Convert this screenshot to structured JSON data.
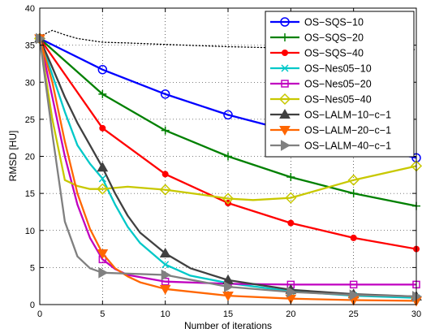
{
  "chart_data": {
    "type": "line",
    "title": "",
    "xlabel": "Number of iterations",
    "ylabel": "RMSD [HU]",
    "xlim": [
      0,
      30
    ],
    "ylim": [
      0,
      40
    ],
    "xticks": [
      0,
      5,
      10,
      15,
      20,
      25,
      30
    ],
    "yticks": [
      0,
      5,
      10,
      15,
      20,
      25,
      30,
      35,
      40
    ],
    "grid": true,
    "legend_position": "top-right",
    "reference_curve": {
      "style": "dotted",
      "color": "#000000",
      "x": [
        0,
        1,
        2,
        3,
        5,
        7,
        10,
        15,
        20,
        25,
        30
      ],
      "y": [
        36.2,
        37.0,
        36.4,
        35.9,
        35.4,
        35.3,
        35.1,
        34.8,
        34.6,
        34.5,
        34.4
      ]
    },
    "series": [
      {
        "name": "OS−SQS−10",
        "color": "#0000ff",
        "marker": "circle",
        "x": [
          0,
          5,
          10,
          15,
          20,
          25,
          30
        ],
        "y": [
          35.9,
          31.7,
          28.4,
          25.6,
          23.4,
          21.5,
          19.8
        ]
      },
      {
        "name": "OS−SQS−20",
        "color": "#008000",
        "marker": "plus",
        "x": [
          0,
          5,
          10,
          15,
          20,
          25,
          30
        ],
        "y": [
          35.9,
          28.4,
          23.5,
          20.0,
          17.2,
          15.0,
          13.3
        ]
      },
      {
        "name": "OS−SQS−40",
        "color": "#ff0000",
        "marker": "dot",
        "x": [
          0,
          5,
          10,
          15,
          20,
          25,
          30
        ],
        "y": [
          35.9,
          23.8,
          17.6,
          13.7,
          11.0,
          9.0,
          7.5
        ]
      },
      {
        "name": "OS−Nes05−10",
        "color": "#00c8c8",
        "marker": "x",
        "x": [
          0,
          1,
          2,
          3,
          4,
          5,
          6,
          7,
          8,
          10,
          12,
          15,
          20,
          25,
          30
        ],
        "y": [
          35.9,
          31.0,
          26.0,
          21.5,
          19.0,
          17.0,
          13.5,
          10.5,
          8.3,
          5.4,
          3.9,
          2.9,
          1.8,
          1.2,
          0.9
        ]
      },
      {
        "name": "OS−Nes05−20",
        "color": "#c000c0",
        "marker": "square",
        "x": [
          0,
          1,
          2,
          3,
          4,
          5,
          6,
          7,
          10,
          15,
          20,
          25,
          30
        ],
        "y": [
          35.9,
          28.0,
          20.0,
          13.5,
          9.0,
          6.1,
          4.8,
          4.0,
          3.1,
          2.8,
          2.7,
          2.7,
          2.7
        ]
      },
      {
        "name": "OS−Nes05−40",
        "color": "#c8c800",
        "marker": "diamond",
        "x": [
          0,
          1,
          2,
          3,
          4,
          5,
          7,
          10,
          13,
          15,
          17,
          20,
          25,
          30
        ],
        "y": [
          35.9,
          25.0,
          16.8,
          16.0,
          15.6,
          15.6,
          15.9,
          15.5,
          14.8,
          14.3,
          14.1,
          14.4,
          16.8,
          18.7
        ]
      },
      {
        "name": "OS−LALM−10−c−1",
        "color": "#404040",
        "marker": "triangle-up",
        "x": [
          0,
          1,
          2,
          3,
          4,
          5,
          6,
          7,
          8,
          10,
          12,
          15,
          20,
          25,
          30
        ],
        "y": [
          35.9,
          32.0,
          28.0,
          24.5,
          21.5,
          18.5,
          15.0,
          12.0,
          9.7,
          6.9,
          4.9,
          3.3,
          2.0,
          1.4,
          1.1
        ]
      },
      {
        "name": "OS−LALM−20−c−1",
        "color": "#ff6600",
        "marker": "triangle-down",
        "x": [
          0,
          1,
          2,
          3,
          4,
          5,
          6,
          7,
          8,
          10,
          15,
          20,
          25,
          30
        ],
        "y": [
          35.9,
          30.0,
          22.0,
          15.0,
          10.2,
          6.9,
          4.9,
          3.8,
          3.0,
          2.1,
          1.2,
          0.8,
          0.6,
          0.5
        ]
      },
      {
        "name": "OS−LALM−40−c−1",
        "color": "#808080",
        "marker": "triangle-right",
        "x": [
          0,
          1,
          2,
          3,
          4,
          5,
          10,
          15,
          20,
          25,
          30
        ],
        "y": [
          35.9,
          23.0,
          11.2,
          6.5,
          4.9,
          4.3,
          4.0,
          2.4,
          1.7,
          1.3,
          1.1
        ]
      }
    ]
  }
}
